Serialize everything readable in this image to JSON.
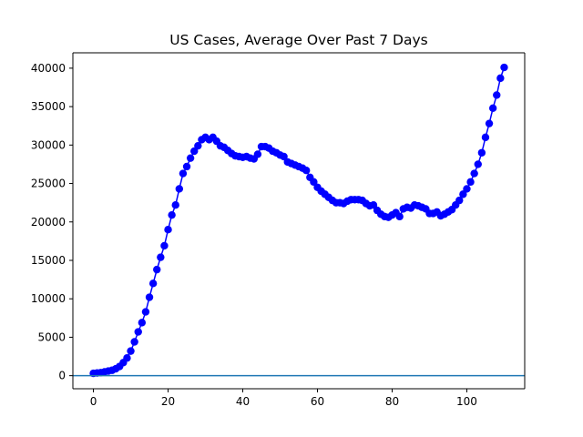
{
  "chart_data": {
    "type": "line",
    "title": "US Cases, Average Over Past 7 Days",
    "xlabel": "",
    "ylabel": "",
    "xlim": [
      -5.5,
      115.5
    ],
    "ylim": [
      -1700,
      42000
    ],
    "x_ticks": [
      0,
      20,
      40,
      60,
      80,
      100
    ],
    "y_ticks": [
      0,
      5000,
      10000,
      15000,
      20000,
      25000,
      30000,
      35000,
      40000
    ],
    "grid": false,
    "legend": "none",
    "series": [
      {
        "color": "#0000ff",
        "marker": "circle",
        "x": [
          0,
          1,
          2,
          3,
          4,
          5,
          6,
          7,
          8,
          9,
          10,
          11,
          12,
          13,
          14,
          15,
          16,
          17,
          18,
          19,
          20,
          21,
          22,
          23,
          24,
          25,
          26,
          27,
          28,
          29,
          30,
          31,
          32,
          33,
          34,
          35,
          36,
          37,
          38,
          39,
          40,
          41,
          42,
          43,
          44,
          45,
          46,
          47,
          48,
          49,
          50,
          51,
          52,
          53,
          54,
          55,
          56,
          57,
          58,
          59,
          60,
          61,
          62,
          63,
          64,
          65,
          66,
          67,
          68,
          69,
          70,
          71,
          72,
          73,
          74,
          75,
          76,
          77,
          78,
          79,
          80,
          81,
          82,
          83,
          84,
          85,
          86,
          87,
          88,
          89,
          90,
          91,
          92,
          93,
          94,
          95,
          96,
          97,
          98,
          99,
          100,
          101,
          102,
          103,
          104,
          105,
          106,
          107,
          108,
          109,
          110
        ],
        "y": [
          300,
          350,
          400,
          500,
          600,
          700,
          900,
          1200,
          1700,
          2300,
          3200,
          4400,
          5700,
          6900,
          8300,
          10200,
          12000,
          13800,
          15400,
          16900,
          19000,
          20900,
          22200,
          24300,
          26300,
          27200,
          28300,
          29200,
          29900,
          30700,
          31000,
          30700,
          31000,
          30500,
          29900,
          29700,
          29300,
          28900,
          28600,
          28500,
          28400,
          28500,
          28300,
          28200,
          28800,
          29800,
          29800,
          29600,
          29200,
          29000,
          28700,
          28500,
          27800,
          27600,
          27400,
          27200,
          27000,
          26700,
          25800,
          25200,
          24500,
          24000,
          23600,
          23200,
          22800,
          22500,
          22500,
          22400,
          22700,
          22900,
          22900,
          22900,
          22800,
          22400,
          22100,
          22200,
          21500,
          21000,
          20700,
          20600,
          20900,
          21200,
          20700,
          21700,
          21900,
          21800,
          22200,
          22100,
          21900,
          21700,
          21100,
          21100,
          21300,
          20800,
          21000,
          21300,
          21600,
          22200,
          22800,
          23600,
          24300,
          25200,
          26300,
          27500,
          29000,
          31000,
          32800,
          34800,
          36500,
          38700,
          40100
        ]
      }
    ],
    "reference_lines": [
      {
        "orientation": "horizontal",
        "y": 0,
        "color": "#1f77b4"
      }
    ]
  }
}
